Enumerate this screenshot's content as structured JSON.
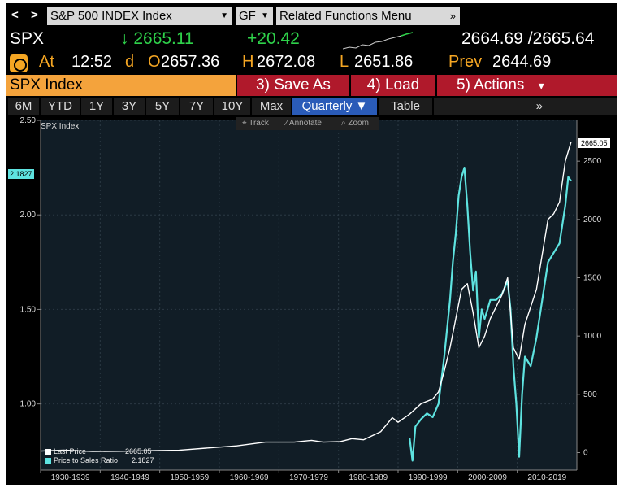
{
  "header": {
    "nav_back": "<",
    "nav_forward": ">",
    "security_field": "S&P 500 INDEX Index",
    "source_field": "GF",
    "related_field": "Related Functions  Menu",
    "related_chevron": "»"
  },
  "quote": {
    "ticker": "SPX",
    "last": "↓ 2665.11",
    "change": "+20.42",
    "bid_ask": "2664.69 /2665.64"
  },
  "ohlc": {
    "at_label": "At",
    "time": "12:52",
    "d_flag": "d",
    "open_label": "O",
    "open": "2657.36",
    "high_label": "H",
    "high": "2672.08",
    "low_label": "L",
    "low": "2651.86",
    "prev_label": "Prev",
    "prev": "2644.69"
  },
  "functions": {
    "security_name": "SPX Index",
    "save_as": "3) Save As",
    "load": "4) Load",
    "actions": "5) Actions",
    "actions_caret": "▾"
  },
  "tabs": [
    {
      "label": "6M"
    },
    {
      "label": "YTD"
    },
    {
      "label": "1Y"
    },
    {
      "label": "3Y"
    },
    {
      "label": "5Y"
    },
    {
      "label": "7Y"
    },
    {
      "label": "10Y"
    },
    {
      "label": "Max"
    },
    {
      "label": "Quarterly ▼"
    },
    {
      "label": "Table"
    },
    {
      "label": "»"
    }
  ],
  "chart_toolbar": {
    "track": "⌖ Track",
    "annotate": "⁄ Annotate",
    "zoom": "⌕ Zoom"
  },
  "colors": {
    "price_line": "#ffffff",
    "ratio_line": "#5ee3e0",
    "accent_orange": "#f4a33c",
    "accent_red": "#b0192b",
    "tab_active": "#2a5bb8"
  },
  "chart_data": {
    "type": "line",
    "title": "SPX Index",
    "left_axis": {
      "ticks": [
        "2.50",
        "2.00",
        "1.50",
        "1.00"
      ],
      "tick_values": [
        2.5,
        2.0,
        1.5,
        1.0
      ],
      "range": [
        0.65,
        2.5
      ]
    },
    "right_axis": {
      "ticks": [
        "0",
        "500",
        "1000",
        "1500",
        "2000",
        "2500"
      ],
      "tick_values": [
        0,
        500,
        1000,
        1500,
        2000,
        2500
      ],
      "range": [
        -150,
        2850
      ]
    },
    "x_categories": [
      "1930-1939",
      "1940-1949",
      "1950-1959",
      "1960-1969",
      "1970-1979",
      "1980-1989",
      "1990-1999",
      "2000-2009",
      "2010-2019"
    ],
    "x_range": [
      1926,
      2019
    ],
    "series": [
      {
        "name": "Last Price",
        "axis": "right",
        "last_label": "2665.05",
        "x": [
          1926,
          1930,
          1935,
          1940,
          1945,
          1950,
          1955,
          1960,
          1965,
          1970,
          1973,
          1975,
          1978,
          1980,
          1982,
          1985,
          1987,
          1988,
          1990,
          1992,
          1994,
          1995,
          1996,
          1997,
          1998,
          1999,
          2000,
          2001,
          2002,
          2003,
          2004,
          2005,
          2006,
          2007,
          2008,
          2009,
          2010,
          2011,
          2012,
          2013,
          2014,
          2015,
          2016,
          2017,
          2018
        ],
        "values": [
          13,
          21,
          10,
          12,
          17,
          20,
          40,
          58,
          90,
          90,
          105,
          90,
          95,
          120,
          110,
          180,
          300,
          260,
          330,
          420,
          460,
          520,
          700,
          900,
          1150,
          1400,
          1450,
          1200,
          900,
          1000,
          1150,
          1250,
          1350,
          1500,
          900,
          800,
          1100,
          1250,
          1400,
          1700,
          2000,
          2050,
          2150,
          2500,
          2665
        ]
      },
      {
        "name": "Price to Sales Ratio",
        "axis": "left",
        "last_label": "2.1827",
        "x": [
          1990,
          1990.5,
          1991,
          1992,
          1993,
          1994,
          1995,
          1996,
          1997,
          1997.5,
          1998,
          1998.5,
          1999,
          1999.5,
          2000,
          2000.5,
          2001,
          2001.5,
          2002,
          2002.5,
          2003,
          2004,
          2005,
          2006,
          2007,
          2007.5,
          2008,
          2008.5,
          2009,
          2009.5,
          2010,
          2011,
          2012,
          2013,
          2014,
          2015,
          2016,
          2017,
          2017.5,
          2018
        ],
        "values": [
          0.82,
          0.7,
          0.88,
          0.92,
          0.95,
          0.93,
          1.0,
          1.25,
          1.55,
          1.75,
          1.9,
          2.1,
          2.2,
          2.25,
          2.05,
          1.8,
          1.6,
          1.7,
          1.35,
          1.5,
          1.45,
          1.55,
          1.55,
          1.58,
          1.65,
          1.5,
          1.2,
          1.0,
          0.72,
          1.05,
          1.25,
          1.2,
          1.35,
          1.55,
          1.75,
          1.8,
          1.85,
          2.05,
          2.2,
          2.18
        ]
      }
    ],
    "legend": {
      "placement": "bottom-left"
    }
  }
}
